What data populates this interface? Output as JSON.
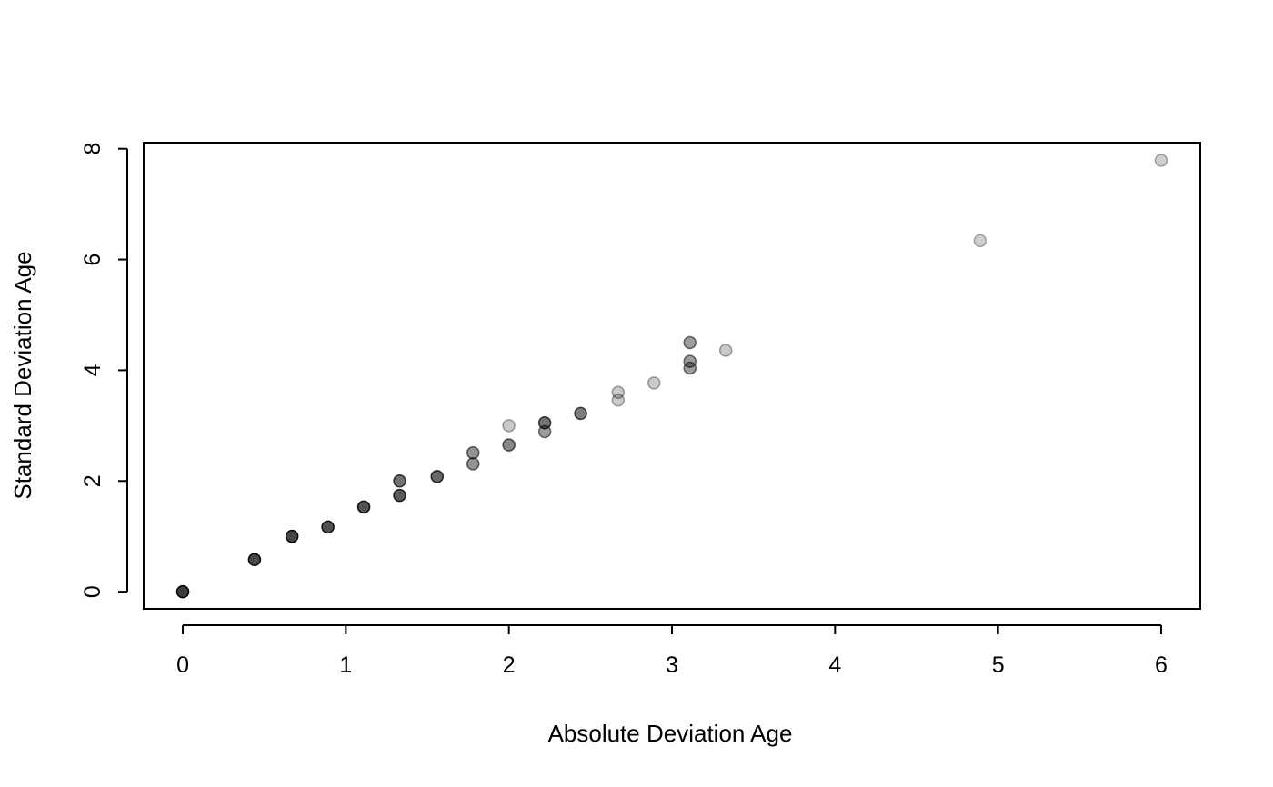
{
  "chart_data": {
    "type": "scatter",
    "title": "",
    "xlabel": "Absolute Deviation Age",
    "ylabel": "Standard Deviation Age",
    "xlim": [
      -0.24,
      6.24
    ],
    "ylim": [
      -0.31,
      8.11
    ],
    "x_ticks": [
      "0",
      "1",
      "2",
      "3",
      "4",
      "5",
      "6"
    ],
    "y_ticks": [
      "0",
      "2",
      "4",
      "6",
      "8"
    ],
    "grid": false,
    "legend": "none",
    "point_color": "#000000",
    "points": [
      {
        "x": 0.0,
        "y": 0.0,
        "shade": 0.9
      },
      {
        "x": 0.44,
        "y": 0.58,
        "shade": 0.85
      },
      {
        "x": 0.67,
        "y": 1.0,
        "shade": 0.85
      },
      {
        "x": 0.89,
        "y": 1.17,
        "shade": 0.8
      },
      {
        "x": 1.11,
        "y": 1.53,
        "shade": 0.8
      },
      {
        "x": 1.33,
        "y": 1.74,
        "shade": 0.75
      },
      {
        "x": 1.33,
        "y": 2.0,
        "shade": 0.65
      },
      {
        "x": 1.56,
        "y": 2.08,
        "shade": 0.7
      },
      {
        "x": 1.78,
        "y": 2.31,
        "shade": 0.5
      },
      {
        "x": 1.78,
        "y": 2.51,
        "shade": 0.5
      },
      {
        "x": 2.0,
        "y": 2.65,
        "shade": 0.55
      },
      {
        "x": 2.0,
        "y": 3.0,
        "shade": 0.25
      },
      {
        "x": 2.22,
        "y": 2.89,
        "shade": 0.45
      },
      {
        "x": 2.22,
        "y": 3.05,
        "shade": 0.65
      },
      {
        "x": 2.44,
        "y": 3.22,
        "shade": 0.6
      },
      {
        "x": 2.67,
        "y": 3.46,
        "shade": 0.25
      },
      {
        "x": 2.67,
        "y": 3.6,
        "shade": 0.25
      },
      {
        "x": 2.89,
        "y": 3.77,
        "shade": 0.25
      },
      {
        "x": 3.11,
        "y": 4.04,
        "shade": 0.45
      },
      {
        "x": 3.11,
        "y": 4.16,
        "shade": 0.45
      },
      {
        "x": 3.11,
        "y": 4.5,
        "shade": 0.45
      },
      {
        "x": 3.33,
        "y": 4.36,
        "shade": 0.25
      },
      {
        "x": 4.89,
        "y": 6.34,
        "shade": 0.22
      },
      {
        "x": 6.0,
        "y": 7.79,
        "shade": 0.22
      }
    ]
  }
}
